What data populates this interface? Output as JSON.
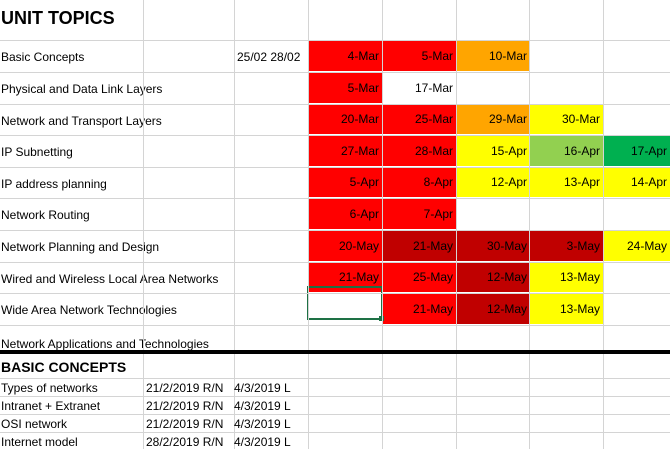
{
  "colors": {
    "red": "#ff0000",
    "dark_red": "#c00000",
    "orange": "#ffa500",
    "yellow": "#ffff00",
    "light_green": "#92d050",
    "green": "#00b050",
    "white": "#ffffff",
    "grid": "#d4d4d4",
    "selection": "#1e7145"
  },
  "unit_topics": {
    "title": "UNIT TOPICS",
    "rows": [
      {
        "topic": "Basic Concepts",
        "extra": "25/02 28/02",
        "cells": [
          {
            "text": "4-Mar",
            "color": "red"
          },
          {
            "text": "5-Mar",
            "color": "red"
          },
          {
            "text": "10-Mar",
            "color": "orange"
          },
          {
            "text": "",
            "color": "white"
          },
          {
            "text": "",
            "color": "white"
          }
        ]
      },
      {
        "topic": "Physical and Data Link Layers",
        "extra": "",
        "cells": [
          {
            "text": "5-Mar",
            "color": "red"
          },
          {
            "text": "17-Mar",
            "color": "white"
          },
          {
            "text": "",
            "color": "white"
          },
          {
            "text": "",
            "color": "white"
          },
          {
            "text": "",
            "color": "white"
          }
        ]
      },
      {
        "topic": "Network and Transport Layers",
        "extra": "",
        "cells": [
          {
            "text": "20-Mar",
            "color": "red"
          },
          {
            "text": "25-Mar",
            "color": "red"
          },
          {
            "text": "29-Mar",
            "color": "orange"
          },
          {
            "text": "30-Mar",
            "color": "yellow"
          },
          {
            "text": "",
            "color": "white"
          }
        ]
      },
      {
        "topic": "IP Subnetting",
        "extra": "",
        "cells": [
          {
            "text": "27-Mar",
            "color": "red"
          },
          {
            "text": "28-Mar",
            "color": "red"
          },
          {
            "text": "15-Apr",
            "color": "yellow"
          },
          {
            "text": "16-Apr",
            "color": "light_green"
          },
          {
            "text": "17-Apr",
            "color": "green"
          }
        ]
      },
      {
        "topic": "IP address planning",
        "extra": "",
        "cells": [
          {
            "text": "5-Apr",
            "color": "red"
          },
          {
            "text": "8-Apr",
            "color": "red"
          },
          {
            "text": "12-Apr",
            "color": "yellow"
          },
          {
            "text": "13-Apr",
            "color": "yellow"
          },
          {
            "text": "14-Apr",
            "color": "yellow"
          }
        ]
      },
      {
        "topic": "Network Routing",
        "extra": "",
        "cells": [
          {
            "text": "6-Apr",
            "color": "red"
          },
          {
            "text": "7-Apr",
            "color": "red"
          },
          {
            "text": "",
            "color": "white"
          },
          {
            "text": "",
            "color": "white"
          },
          {
            "text": "",
            "color": "white"
          }
        ]
      },
      {
        "topic": "Network Planning and Design",
        "extra": "",
        "cells": [
          {
            "text": "20-May",
            "color": "red"
          },
          {
            "text": "21-May",
            "color": "dark_red"
          },
          {
            "text": "30-May",
            "color": "dark_red"
          },
          {
            "text": "3-May",
            "color": "dark_red"
          },
          {
            "text": "24-May",
            "color": "yellow"
          }
        ]
      },
      {
        "topic": "Wired and Wireless Local Area Networks",
        "extra": "",
        "cells": [
          {
            "text": "21-May",
            "color": "red"
          },
          {
            "text": "25-May",
            "color": "red"
          },
          {
            "text": "12-May",
            "color": "dark_red"
          },
          {
            "text": "13-May",
            "color": "yellow"
          },
          {
            "text": "",
            "color": "white"
          }
        ]
      },
      {
        "topic": "Wide Area Network Technologies",
        "extra": "",
        "cells": [
          {
            "text": "",
            "color": "white"
          },
          {
            "text": "21-May",
            "color": "red"
          },
          {
            "text": "12-May",
            "color": "dark_red"
          },
          {
            "text": "13-May",
            "color": "yellow"
          },
          {
            "text": "",
            "color": "white"
          }
        ]
      },
      {
        "topic": "Network Applications and Technologies",
        "extra": "",
        "cells": [
          {
            "text": "",
            "color": "white"
          },
          {
            "text": "",
            "color": "white"
          },
          {
            "text": "",
            "color": "white"
          },
          {
            "text": "",
            "color": "white"
          },
          {
            "text": "",
            "color": "white"
          }
        ]
      }
    ]
  },
  "basic_concepts": {
    "title": "BASIC CONCEPTS",
    "rows": [
      {
        "topic": "Types of networks",
        "date1": "21/2/2019 R/N",
        "date2": "4/3/2019 L"
      },
      {
        "topic": "Intranet + Extranet",
        "date1": "21/2/2019 R/N",
        "date2": "4/3/2019 L"
      },
      {
        "topic": "OSI network",
        "date1": "21/2/2019 R/N",
        "date2": "4/3/2019 L"
      },
      {
        "topic": "Internet model",
        "date1": "28/2/2019 R/N",
        "date2": "4/3/2019 L"
      }
    ]
  }
}
